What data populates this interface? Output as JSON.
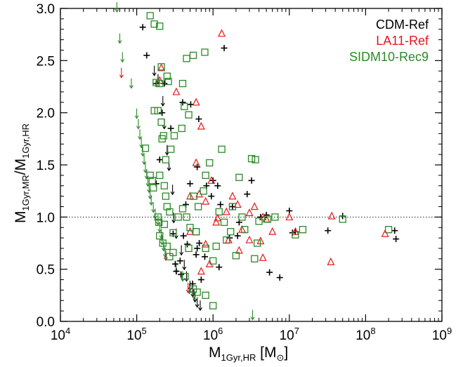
{
  "chart_data": {
    "type": "scatter",
    "title": "",
    "xlabel": {
      "main": "M",
      "sub": "1Gyr,HR",
      "unit_open": " [M",
      "unit_sym": "⊙",
      "unit_close": "]"
    },
    "ylabel": {
      "m1": "M",
      "s1": "1Gyr,MR",
      "slash": "/M",
      "s2": "1Gyr,HR"
    },
    "xscale": "log",
    "xlim": [
      10000,
      1000000000
    ],
    "ylim": [
      0,
      3
    ],
    "x_ticks": [
      {
        "value": 10000,
        "base": "10",
        "exp": "4"
      },
      {
        "value": 100000,
        "base": "10",
        "exp": "5"
      },
      {
        "value": 1000000,
        "base": "10",
        "exp": "6"
      },
      {
        "value": 10000000,
        "base": "10",
        "exp": "7"
      },
      {
        "value": 100000000,
        "base": "10",
        "exp": "8"
      },
      {
        "value": 1000000000,
        "base": "10",
        "exp": "9"
      }
    ],
    "y_ticks": [
      {
        "value": 0.0,
        "label": "0.0"
      },
      {
        "value": 0.5,
        "label": "0.5"
      },
      {
        "value": 1.0,
        "label": "1.0"
      },
      {
        "value": 1.5,
        "label": "1.5"
      },
      {
        "value": 2.0,
        "label": "2.0"
      },
      {
        "value": 2.5,
        "label": "2.5"
      },
      {
        "value": 3.0,
        "label": "3.0"
      }
    ],
    "reference_line": {
      "y": 1.0,
      "style": "dotted"
    },
    "legend_position": "top-right",
    "series": [
      {
        "name": "CDM-Ref",
        "color": "#000000",
        "marker": "plus",
        "points": [
          [
            120000,
            2.82
          ],
          [
            135000,
            2.55
          ],
          [
            180000,
            2.28
          ],
          [
            230000,
            2.28
          ],
          [
            400000,
            2.1
          ],
          [
            510000,
            2.08
          ],
          [
            1400000,
            2.62
          ],
          [
            215000,
            2.0
          ],
          [
            280000,
            1.85
          ],
          [
            650000,
            1.94
          ],
          [
            180000,
            1.32
          ],
          [
            200000,
            1.55
          ],
          [
            620000,
            1.48
          ],
          [
            820000,
            1.3
          ],
          [
            1000000,
            1.35
          ],
          [
            1150000,
            1.3
          ],
          [
            1250000,
            1.12
          ],
          [
            1800000,
            1.1
          ],
          [
            950000,
            1.2
          ],
          [
            500000,
            1.32
          ],
          [
            440000,
            1.12
          ],
          [
            3200000,
            1.35
          ],
          [
            2800000,
            1.22
          ],
          [
            2200000,
            0.95
          ],
          [
            4200000,
            1.0
          ],
          [
            5000000,
            1.02
          ],
          [
            10000000,
            1.06
          ],
          [
            11000000,
            0.85
          ],
          [
            12000000,
            0.86
          ],
          [
            32000000,
            0.87
          ],
          [
            50000000,
            1.01
          ],
          [
            250000000,
            0.79
          ],
          [
            240000000,
            0.87
          ],
          [
            300000,
            0.84
          ],
          [
            410000,
            0.82
          ],
          [
            460000,
            0.74
          ],
          [
            600000,
            0.64
          ],
          [
            780000,
            0.62
          ],
          [
            1200000,
            0.52
          ],
          [
            1650000,
            0.8
          ],
          [
            2100000,
            0.82
          ],
          [
            320000,
            0.55
          ],
          [
            380000,
            0.45
          ],
          [
            540000,
            0.36
          ],
          [
            700000,
            0.4
          ],
          [
            560000,
            0.28
          ],
          [
            5500000,
            0.47
          ],
          [
            7500000,
            0.42
          ],
          [
            370000,
            0.58
          ],
          [
            620000,
            0.7
          ],
          [
            330000,
            0.48
          ],
          [
            660000,
            0.75
          ]
        ]
      },
      {
        "name": "LA11-Ref",
        "color": "#e8171a",
        "marker": "triangle",
        "points": [
          [
            1300000,
            2.76
          ],
          [
            210000,
            2.43
          ],
          [
            330000,
            2.2
          ],
          [
            600000,
            2.1
          ],
          [
            700000,
            1.87
          ],
          [
            200000,
            2.31
          ],
          [
            600000,
            1.52
          ],
          [
            500000,
            1.2
          ],
          [
            660000,
            1.22
          ],
          [
            800000,
            1.15
          ],
          [
            950000,
            1.35
          ],
          [
            1150000,
            0.99
          ],
          [
            1500000,
            1.05
          ],
          [
            1800000,
            1.2
          ],
          [
            2100000,
            1.12
          ],
          [
            2400000,
            0.88
          ],
          [
            3000000,
            0.78
          ],
          [
            3500000,
            1.1
          ],
          [
            4500000,
            1.0
          ],
          [
            6000000,
            0.86
          ],
          [
            4200000,
            0.77
          ],
          [
            10000000,
            1.0
          ],
          [
            12000000,
            0.86
          ],
          [
            36000000,
            1.01
          ],
          [
            35000000,
            0.57
          ],
          [
            180000000,
            0.84
          ],
          [
            800000,
            0.74
          ],
          [
            500000,
            0.86
          ],
          [
            900000,
            0.55
          ],
          [
            700000,
            0.48
          ],
          [
            1100000,
            0.95
          ],
          [
            1600000,
            0.78
          ],
          [
            2200000,
            0.68
          ],
          [
            3000000,
            1.04
          ],
          [
            5000000,
            0.98
          ],
          [
            4500000,
            0.61
          ]
        ]
      },
      {
        "name": "SIDM10-Rec9",
        "color": "#2a8a28",
        "marker": "square",
        "points": [
          [
            150000,
            2.93
          ],
          [
            170000,
            2.85
          ],
          [
            200000,
            2.83
          ],
          [
            210000,
            2.44
          ],
          [
            180000,
            2.29
          ],
          [
            200000,
            2.28
          ],
          [
            190000,
            2.02
          ],
          [
            170000,
            2.02
          ],
          [
            210000,
            1.91
          ],
          [
            225000,
            1.78
          ],
          [
            215000,
            1.75
          ],
          [
            250000,
            2.35
          ],
          [
            260000,
            2.3
          ],
          [
            400000,
            2.28
          ],
          [
            550000,
            2.55
          ],
          [
            450000,
            2.52
          ],
          [
            780000,
            2.58
          ],
          [
            480000,
            1.98
          ],
          [
            420000,
            2.06
          ],
          [
            390000,
            1.85
          ],
          [
            310000,
            1.78
          ],
          [
            280000,
            1.65
          ],
          [
            240000,
            1.55
          ],
          [
            130000,
            1.66
          ],
          [
            150000,
            1.4
          ],
          [
            160000,
            1.35
          ],
          [
            165000,
            1.28
          ],
          [
            200000,
            1.4
          ],
          [
            230000,
            1.3
          ],
          [
            240000,
            1.2
          ],
          [
            250000,
            1.1
          ],
          [
            270000,
            1.05
          ],
          [
            190000,
            1.0
          ],
          [
            195000,
            0.95
          ],
          [
            230000,
            0.93
          ],
          [
            300000,
            0.85
          ],
          [
            350000,
            1.0
          ],
          [
            400000,
            1.08
          ],
          [
            450000,
            1.0
          ],
          [
            500000,
            0.9
          ],
          [
            600000,
            0.86
          ],
          [
            640000,
            1.1
          ],
          [
            560000,
            1.2
          ],
          [
            750000,
            1.25
          ],
          [
            800000,
            1.4
          ],
          [
            900000,
            1.52
          ],
          [
            1300000,
            1.65
          ],
          [
            1200000,
            1.05
          ],
          [
            1400000,
            0.95
          ],
          [
            1800000,
            1.1
          ],
          [
            1700000,
            0.86
          ],
          [
            2400000,
            1.0
          ],
          [
            2600000,
            0.88
          ],
          [
            3200000,
            1.56
          ],
          [
            3600000,
            1.55
          ],
          [
            2200000,
            1.38
          ],
          [
            4000000,
            0.96
          ],
          [
            5200000,
            0.98
          ],
          [
            6500000,
            1.0
          ],
          [
            3500000,
            0.6
          ],
          [
            3800000,
            0.75
          ],
          [
            1500000,
            0.78
          ],
          [
            2000000,
            0.63
          ],
          [
            1100000,
            0.72
          ],
          [
            1000000,
            0.58
          ],
          [
            800000,
            0.7
          ],
          [
            600000,
            0.86
          ],
          [
            480000,
            0.7
          ],
          [
            300000,
            0.66
          ],
          [
            270000,
            0.62
          ],
          [
            250000,
            0.72
          ],
          [
            220000,
            0.75
          ],
          [
            200000,
            0.82
          ],
          [
            550000,
            0.31
          ],
          [
            620000,
            0.28
          ],
          [
            800000,
            0.25
          ],
          [
            1000000,
            0.15
          ],
          [
            430000,
            0.43
          ],
          [
            12000000,
            0.83
          ],
          [
            15000000,
            0.88
          ],
          [
            50000000,
            0.98
          ],
          [
            200000000,
            0.88
          ]
        ]
      }
    ],
    "upper_limits": [
      {
        "color": "#000000",
        "points": [
          [
            170000,
            2.39
          ],
          [
            190000,
            2.31
          ],
          [
            220000,
            2.1
          ],
          [
            230000,
            1.88
          ],
          [
            250000,
            1.63
          ],
          [
            265000,
            1.48
          ],
          [
            295000,
            1.25
          ],
          [
            305000,
            0.98
          ],
          [
            330000,
            0.83
          ],
          [
            385000,
            0.67
          ],
          [
            420000,
            0.53
          ],
          [
            450000,
            0.42
          ],
          [
            500000,
            0.33
          ],
          [
            540000,
            0.27
          ],
          [
            580000,
            0.22
          ],
          [
            620000,
            0.17
          ],
          [
            680000,
            0.14
          ]
        ]
      },
      {
        "color": "#2a8a28",
        "points": [
          [
            55000,
            3.0
          ],
          [
            60000,
            2.7
          ],
          [
            65000,
            2.52
          ],
          [
            85000,
            2.27
          ],
          [
            100000,
            1.98
          ],
          [
            105000,
            1.88
          ],
          [
            110000,
            1.78
          ],
          [
            115000,
            1.7
          ],
          [
            120000,
            1.62
          ],
          [
            125000,
            1.54
          ],
          [
            130000,
            1.46
          ],
          [
            135000,
            1.4
          ],
          [
            140000,
            1.33
          ],
          [
            145000,
            1.27
          ],
          [
            150000,
            1.21
          ],
          [
            155000,
            1.15
          ],
          [
            165000,
            1.08
          ],
          [
            175000,
            1.02
          ],
          [
            190000,
            0.96
          ],
          [
            200000,
            0.89
          ],
          [
            210000,
            0.83
          ],
          [
            215000,
            0.77
          ],
          [
            225000,
            0.71
          ],
          [
            235000,
            0.65
          ],
          [
            330000,
            0.5
          ],
          [
            400000,
            0.42
          ],
          [
            490000,
            0.3
          ],
          [
            560000,
            0.25
          ],
          [
            3300000,
            0.05
          ]
        ]
      },
      {
        "color": "#e8171a",
        "points": [
          [
            63000,
            2.37
          ],
          [
            240000,
            0.62
          ],
          [
            470000,
            0.31
          ]
        ]
      }
    ]
  }
}
